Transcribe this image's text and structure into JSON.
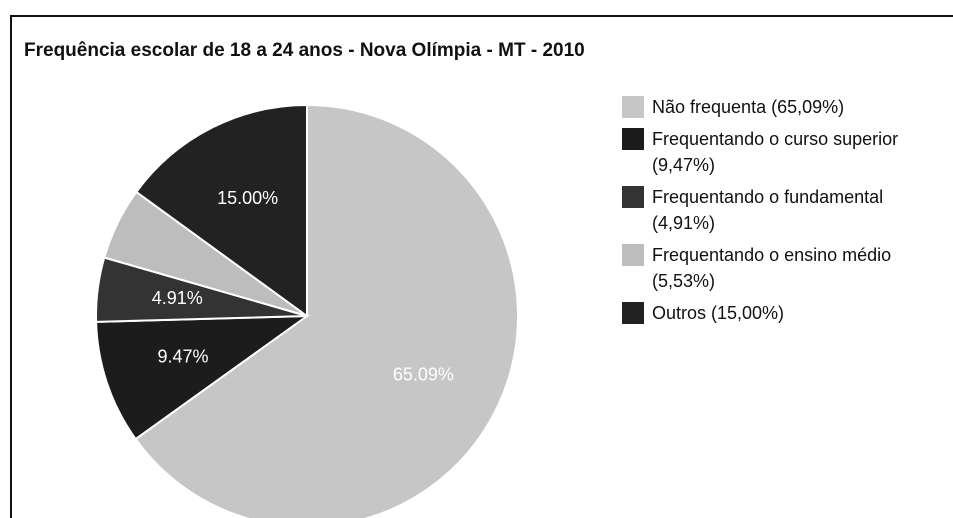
{
  "chart_data": {
    "type": "pie",
    "title": "Frequência escolar de 18 a 24 anos - Nova Olímpia - MT - 2010",
    "categories": [
      "Não frequenta (65,09%)",
      "Frequentando o curso superior (9,47%)",
      "Frequentando o fundamental (4,91%)",
      "Frequentando o ensino médio (5,53%)",
      "Outros (15,00%)"
    ],
    "values": [
      65.09,
      9.47,
      4.91,
      5.53,
      15.0
    ],
    "value_labels": [
      "65.09%",
      "9.47%",
      "4.91%",
      null,
      "15.00%"
    ],
    "colors": [
      "#c6c6c6",
      "#1c1c1c",
      "#333333",
      "#bdbdbd",
      "#222222"
    ],
    "legend": "right"
  }
}
